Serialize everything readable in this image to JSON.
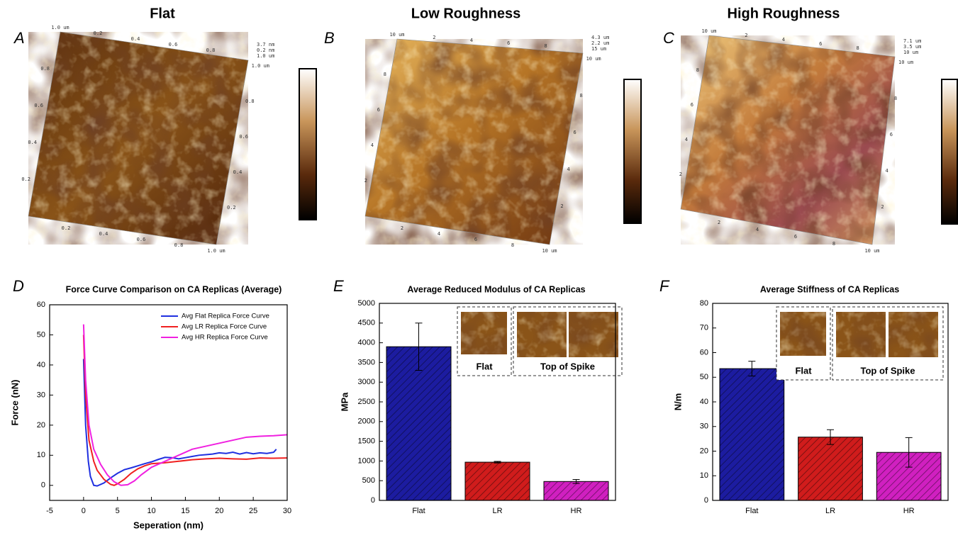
{
  "figure": {
    "panels": [
      {
        "letter": "A",
        "title": "Flat",
        "top": [
          "1.0 um",
          "0.2",
          "0.4",
          "0.6",
          "0.8"
        ],
        "corner": [
          "3.7 nm",
          "0.2 nm",
          "1.0 um"
        ],
        "left": [
          "0.8",
          "0.6",
          "0.4",
          "0.2"
        ],
        "bottom": [
          "0.2",
          "0.4",
          "0.6",
          "0.8",
          "1.0 um"
        ],
        "right": [
          "1.0 um",
          "0.8",
          "0.6",
          "0.4",
          "0.2"
        ]
      },
      {
        "letter": "B",
        "title": "Low Roughness",
        "top": [
          "10 um",
          "2",
          "4",
          "6",
          "8"
        ],
        "corner": [
          "4.3 um",
          "2.2 um",
          "15 um"
        ],
        "left": [
          "8",
          "6",
          "4",
          "2"
        ],
        "bottom": [
          "2",
          "4",
          "6",
          "8",
          "10 um"
        ],
        "right": [
          "10 um",
          "8",
          "6",
          "4",
          "2"
        ]
      },
      {
        "letter": "C",
        "title": "High Roughness",
        "top": [
          "10 um",
          "2",
          "4",
          "6",
          "8"
        ],
        "corner": [
          "7.1 um",
          "3.5 um",
          "10 um"
        ],
        "left": [
          "8",
          "6",
          "4",
          "2"
        ],
        "bottom": [
          "2",
          "4",
          "6",
          "8",
          "10 um"
        ],
        "right": [
          "10 um",
          "8",
          "6",
          "4",
          "2"
        ]
      }
    ]
  },
  "chart_data": [
    {
      "type": "line",
      "panel": "D",
      "title": "Force Curve Comparison on CA Replicas (Average)",
      "x_label": "Seperation (nm)",
      "y_label": "Force (nN)",
      "xlim": [
        -5,
        30
      ],
      "xticks": [
        -5,
        0,
        5,
        10,
        15,
        20,
        25,
        30
      ],
      "ylim": [
        -5,
        60
      ],
      "yticks": [
        0,
        10,
        20,
        30,
        40,
        50,
        60
      ],
      "grid": false,
      "legend": "upper right",
      "series": [
        {
          "name": "Avg Flat Replica Force Curve",
          "color": "#1f2fe0",
          "x": [
            0,
            0.3,
            0.7,
            1,
            1.5,
            2,
            3,
            4,
            5,
            6,
            7,
            8,
            9,
            10,
            11,
            12,
            13,
            14,
            15,
            16,
            17,
            18,
            19,
            20,
            21,
            22,
            23,
            24,
            25,
            26,
            27,
            28,
            28.4
          ],
          "values": [
            42,
            20,
            8,
            3,
            0,
            -0.2,
            0.8,
            2.5,
            4,
            5.2,
            5.8,
            6.5,
            7.2,
            7.8,
            8.6,
            9.3,
            9.2,
            8.8,
            9.2,
            9.6,
            10,
            10.2,
            10.4,
            10.8,
            10.6,
            11,
            10.4,
            10.9,
            10.5,
            10.8,
            10.6,
            11,
            12
          ]
        },
        {
          "name": "Avg LR Replica Force Curve",
          "color": "#f02020",
          "x": [
            0,
            0.3,
            0.8,
            1.5,
            2,
            3,
            4,
            4.5,
            5,
            6,
            7,
            8,
            9,
            10,
            12,
            14,
            16,
            18,
            20,
            22,
            24,
            26,
            28,
            30
          ],
          "values": [
            50,
            30,
            15,
            8,
            5,
            2,
            0.3,
            0,
            0.5,
            2,
            4,
            5.5,
            6.5,
            7.2,
            7.5,
            8,
            8.5,
            8.8,
            9,
            8.8,
            8.7,
            9.1,
            9,
            9.1
          ]
        },
        {
          "name": "Avg HR Replica Force Curve",
          "color": "#f020e0",
          "x": [
            0,
            0.3,
            0.8,
            1.5,
            2.5,
            3.5,
            4.5,
            5.5,
            6.5,
            7.5,
            8.5,
            10,
            11,
            12,
            14,
            16,
            18,
            20,
            22,
            24,
            26,
            28,
            30
          ],
          "values": [
            53.5,
            35,
            20,
            12,
            7,
            3.5,
            1.2,
            0,
            0.2,
            1.5,
            3.5,
            6,
            7,
            8,
            10,
            12,
            13,
            14,
            15,
            16,
            16.3,
            16.5,
            16.8
          ]
        }
      ]
    },
    {
      "type": "bar",
      "panel": "E",
      "title": "Average Reduced Modulus of CA Replicas",
      "y_label": "MPa",
      "categories": [
        "Flat",
        "LR",
        "HR"
      ],
      "values": [
        3900,
        970,
        480
      ],
      "errors": [
        600,
        20,
        50
      ],
      "colors": [
        "#1c1ca0",
        "#d01c1c",
        "#d020c0"
      ],
      "ylim": [
        0,
        5000
      ],
      "yticks": [
        0,
        500,
        1000,
        1500,
        2000,
        2500,
        3000,
        3500,
        4000,
        4500,
        5000
      ],
      "inset_labels": [
        "Flat",
        "Top of Spike"
      ]
    },
    {
      "type": "bar",
      "panel": "F",
      "title": "Average Stiffness of CA Replicas",
      "y_label": "N/m",
      "categories": [
        "Flat",
        "LR",
        "HR"
      ],
      "values": [
        53.5,
        25.7,
        19.5
      ],
      "errors": [
        3,
        3,
        6
      ],
      "colors": [
        "#1c1ca0",
        "#d01c1c",
        "#d020c0"
      ],
      "ylim": [
        0,
        80
      ],
      "yticks": [
        0,
        10,
        20,
        30,
        40,
        50,
        60,
        70,
        80
      ],
      "inset_labels": [
        "Flat",
        "Top of Spike"
      ]
    }
  ]
}
